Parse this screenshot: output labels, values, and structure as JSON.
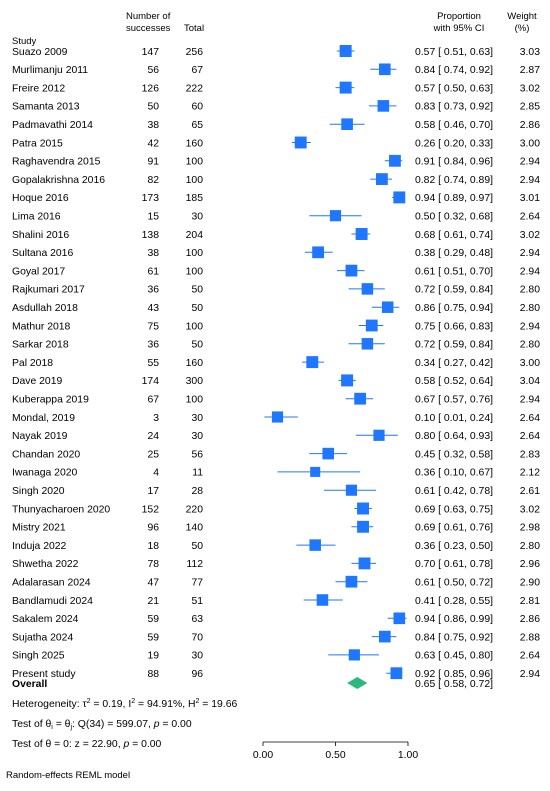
{
  "chart_data": {
    "type": "forest",
    "headers": {
      "study": "Study",
      "successes": [
        "Number of",
        "successes"
      ],
      "total": "Total",
      "ci": [
        "Proportion",
        "with 95% CI"
      ],
      "weight": [
        "Weight",
        "(%)"
      ]
    },
    "studies": [
      {
        "study": "Suazo 2009",
        "successes": 147,
        "total": 256,
        "prop": 0.57,
        "lo": 0.51,
        "hi": 0.63,
        "ci_text": "0.57 [ 0.51, 0.63]",
        "weight": "3.03"
      },
      {
        "study": "Murlimanju 2011",
        "successes": 56,
        "total": 67,
        "prop": 0.84,
        "lo": 0.74,
        "hi": 0.92,
        "ci_text": "0.84 [ 0.74, 0.92]",
        "weight": "2.87"
      },
      {
        "study": "Freire 2012",
        "successes": 126,
        "total": 222,
        "prop": 0.57,
        "lo": 0.5,
        "hi": 0.63,
        "ci_text": "0.57 [ 0.50, 0.63]",
        "weight": "3.02"
      },
      {
        "study": "Samanta 2013",
        "successes": 50,
        "total": 60,
        "prop": 0.83,
        "lo": 0.73,
        "hi": 0.92,
        "ci_text": "0.83 [ 0.73, 0.92]",
        "weight": "2.85"
      },
      {
        "study": "Padmavathi 2014",
        "successes": 38,
        "total": 65,
        "prop": 0.58,
        "lo": 0.46,
        "hi": 0.7,
        "ci_text": "0.58 [ 0.46, 0.70]",
        "weight": "2.86"
      },
      {
        "study": "Patra 2015",
        "successes": 42,
        "total": 160,
        "prop": 0.26,
        "lo": 0.2,
        "hi": 0.33,
        "ci_text": "0.26 [ 0.20, 0.33]",
        "weight": "3.00"
      },
      {
        "study": "Raghavendra 2015",
        "successes": 91,
        "total": 100,
        "prop": 0.91,
        "lo": 0.84,
        "hi": 0.96,
        "ci_text": "0.91 [ 0.84, 0.96]",
        "weight": "2.94"
      },
      {
        "study": "Gopalakrishna 2016",
        "successes": 82,
        "total": 100,
        "prop": 0.82,
        "lo": 0.74,
        "hi": 0.89,
        "ci_text": "0.82 [ 0.74, 0.89]",
        "weight": "2.94"
      },
      {
        "study": "Hoque 2016",
        "successes": 173,
        "total": 185,
        "prop": 0.94,
        "lo": 0.89,
        "hi": 0.97,
        "ci_text": "0.94 [ 0.89, 0.97]",
        "weight": "3.01"
      },
      {
        "study": "Lima 2016",
        "successes": 15,
        "total": 30,
        "prop": 0.5,
        "lo": 0.32,
        "hi": 0.68,
        "ci_text": "0.50 [ 0.32, 0.68]",
        "weight": "2.64"
      },
      {
        "study": "Shalini 2016",
        "successes": 138,
        "total": 204,
        "prop": 0.68,
        "lo": 0.61,
        "hi": 0.74,
        "ci_text": "0.68 [ 0.61, 0.74]",
        "weight": "3.02"
      },
      {
        "study": "Sultana 2016",
        "successes": 38,
        "total": 100,
        "prop": 0.38,
        "lo": 0.29,
        "hi": 0.48,
        "ci_text": "0.38 [ 0.29, 0.48]",
        "weight": "2.94"
      },
      {
        "study": "Goyal 2017",
        "successes": 61,
        "total": 100,
        "prop": 0.61,
        "lo": 0.51,
        "hi": 0.7,
        "ci_text": "0.61 [ 0.51, 0.70]",
        "weight": "2.94"
      },
      {
        "study": "Rajkumari 2017",
        "successes": 36,
        "total": 50,
        "prop": 0.72,
        "lo": 0.59,
        "hi": 0.84,
        "ci_text": "0.72 [ 0.59, 0.84]",
        "weight": "2.80"
      },
      {
        "study": "Asdullah 2018",
        "successes": 43,
        "total": 50,
        "prop": 0.86,
        "lo": 0.75,
        "hi": 0.94,
        "ci_text": "0.86 [ 0.75, 0.94]",
        "weight": "2.80"
      },
      {
        "study": "Mathur 2018",
        "successes": 75,
        "total": 100,
        "prop": 0.75,
        "lo": 0.66,
        "hi": 0.83,
        "ci_text": "0.75 [ 0.66, 0.83]",
        "weight": "2.94"
      },
      {
        "study": "Sarkar 2018",
        "successes": 36,
        "total": 50,
        "prop": 0.72,
        "lo": 0.59,
        "hi": 0.84,
        "ci_text": "0.72 [ 0.59, 0.84]",
        "weight": "2.80"
      },
      {
        "study": "Pal 2018",
        "successes": 55,
        "total": 160,
        "prop": 0.34,
        "lo": 0.27,
        "hi": 0.42,
        "ci_text": "0.34 [ 0.27, 0.42]",
        "weight": "3.00"
      },
      {
        "study": "Dave 2019",
        "successes": 174,
        "total": 300,
        "prop": 0.58,
        "lo": 0.52,
        "hi": 0.64,
        "ci_text": "0.58 [ 0.52, 0.64]",
        "weight": "3.04"
      },
      {
        "study": "Kuberappa 2019",
        "successes": 67,
        "total": 100,
        "prop": 0.67,
        "lo": 0.57,
        "hi": 0.76,
        "ci_text": "0.67 [ 0.57, 0.76]",
        "weight": "2.94"
      },
      {
        "study": "Mondal, 2019",
        "successes": 3,
        "total": 30,
        "prop": 0.1,
        "lo": 0.01,
        "hi": 0.24,
        "ci_text": "0.10 [ 0.01, 0.24]",
        "weight": "2.64"
      },
      {
        "study": "Nayak 2019",
        "successes": 24,
        "total": 30,
        "prop": 0.8,
        "lo": 0.64,
        "hi": 0.93,
        "ci_text": "0.80 [ 0.64, 0.93]",
        "weight": "2.64"
      },
      {
        "study": "Chandan 2020",
        "successes": 25,
        "total": 56,
        "prop": 0.45,
        "lo": 0.32,
        "hi": 0.58,
        "ci_text": "0.45 [ 0.32, 0.58]",
        "weight": "2.83"
      },
      {
        "study": "Iwanaga 2020",
        "successes": 4,
        "total": 11,
        "prop": 0.36,
        "lo": 0.1,
        "hi": 0.67,
        "ci_text": "0.36 [ 0.10, 0.67]",
        "weight": "2.12"
      },
      {
        "study": "Singh 2020",
        "successes": 17,
        "total": 28,
        "prop": 0.61,
        "lo": 0.42,
        "hi": 0.78,
        "ci_text": "0.61 [ 0.42, 0.78]",
        "weight": "2.61"
      },
      {
        "study": "Thunyacharoen 2020",
        "successes": 152,
        "total": 220,
        "prop": 0.69,
        "lo": 0.63,
        "hi": 0.75,
        "ci_text": "0.69 [ 0.63, 0.75]",
        "weight": "3.02"
      },
      {
        "study": "Mistry 2021",
        "successes": 96,
        "total": 140,
        "prop": 0.69,
        "lo": 0.61,
        "hi": 0.76,
        "ci_text": "0.69 [ 0.61, 0.76]",
        "weight": "2.98"
      },
      {
        "study": "Induja 2022",
        "successes": 18,
        "total": 50,
        "prop": 0.36,
        "lo": 0.23,
        "hi": 0.5,
        "ci_text": "0.36 [ 0.23, 0.50]",
        "weight": "2.80"
      },
      {
        "study": "Shwetha 2022",
        "successes": 78,
        "total": 112,
        "prop": 0.7,
        "lo": 0.61,
        "hi": 0.78,
        "ci_text": "0.70 [ 0.61, 0.78]",
        "weight": "2.96"
      },
      {
        "study": "Adalarasan 2024",
        "successes": 47,
        "total": 77,
        "prop": 0.61,
        "lo": 0.5,
        "hi": 0.72,
        "ci_text": "0.61 [ 0.50, 0.72]",
        "weight": "2.90"
      },
      {
        "study": "Bandlamudi 2024",
        "successes": 21,
        "total": 51,
        "prop": 0.41,
        "lo": 0.28,
        "hi": 0.55,
        "ci_text": "0.41 [ 0.28, 0.55]",
        "weight": "2.81"
      },
      {
        "study": "Sakalem 2024",
        "successes": 59,
        "total": 63,
        "prop": 0.94,
        "lo": 0.86,
        "hi": 0.99,
        "ci_text": "0.94 [ 0.86, 0.99]",
        "weight": "2.86"
      },
      {
        "study": "Sujatha 2024",
        "successes": 59,
        "total": 70,
        "prop": 0.84,
        "lo": 0.75,
        "hi": 0.92,
        "ci_text": "0.84 [ 0.75, 0.92]",
        "weight": "2.88"
      },
      {
        "study": "Singh 2025",
        "successes": 19,
        "total": 30,
        "prop": 0.63,
        "lo": 0.45,
        "hi": 0.8,
        "ci_text": "0.63 [ 0.45, 0.80]",
        "weight": "2.64"
      },
      {
        "study": "Present study",
        "successes": 88,
        "total": 96,
        "prop": 0.92,
        "lo": 0.85,
        "hi": 0.96,
        "ci_text": "0.92 [ 0.85, 0.96]",
        "weight": "2.94"
      }
    ],
    "overall": {
      "label": "Overall",
      "prop": 0.65,
      "lo": 0.58,
      "hi": 0.72,
      "ci_text": "0.65 [ 0.58, 0.72]"
    },
    "heterogeneity": {
      "tau2_sym": "τ",
      "tau2_val": " = 0.19, ",
      "i2_sym": "I",
      "i2_val": " = 94.91%, ",
      "h2_sym": "H",
      "h2_val": " = 19.66",
      "prefix": "Heterogeneity: "
    },
    "test_theta_i": {
      "prefix": "Test of θ",
      "mid": " = θ",
      "suffix": ": Q(34) = 599.07, ",
      "p": "p",
      "p_val": " = 0.00"
    },
    "test_theta_0": {
      "prefix": "Test of θ = 0: z = 22.90, ",
      "p": "p",
      "p_val": " = 0.00"
    },
    "xaxis": {
      "ticks": [
        0.0,
        0.5,
        1.0
      ],
      "tick_labels": [
        "0.00",
        "0.50",
        "1.00"
      ],
      "xlim": [
        0,
        1
      ]
    },
    "footnote": "Random-effects REML model",
    "colors": {
      "marker": "#1f77ff",
      "ci_line": "#1f77ff",
      "overall": "#2db87d"
    }
  }
}
